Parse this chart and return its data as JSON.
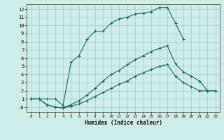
{
  "xlabel": "Humidex (Indice chaleur)",
  "bg_color": "#ceecea",
  "grid_color": "#9ececa",
  "line_color": "#1a6b5c",
  "xticks": [
    0,
    1,
    2,
    3,
    4,
    5,
    6,
    7,
    8,
    9,
    10,
    11,
    12,
    13,
    14,
    15,
    16,
    17,
    18,
    19,
    20,
    21,
    22,
    23
  ],
  "yticks": [
    0,
    1,
    2,
    3,
    4,
    5,
    6,
    7,
    8,
    9,
    10,
    11,
    12
  ],
  "ytick_labels": [
    "-0",
    "1",
    "2",
    "3",
    "4",
    "5",
    "6",
    "7",
    "8",
    "9",
    "10",
    "11",
    "12"
  ],
  "line1_x": [
    0,
    1,
    2,
    3,
    4,
    5,
    6,
    7,
    8,
    9,
    10,
    11,
    12,
    13,
    14,
    15,
    16,
    17,
    18,
    19
  ],
  "line1_y": [
    1.0,
    1.0,
    1.0,
    1.0,
    0.2,
    5.5,
    6.3,
    8.3,
    9.3,
    9.3,
    10.3,
    10.8,
    11.0,
    11.4,
    11.5,
    11.7,
    12.2,
    12.2,
    10.3,
    8.3
  ],
  "line2_x": [
    0,
    1,
    2,
    3,
    4,
    5,
    6,
    7,
    8,
    9,
    10,
    11,
    12,
    13,
    14,
    15,
    16,
    17,
    18,
    19,
    20,
    21,
    22,
    23
  ],
  "line2_y": [
    1.0,
    1.0,
    0.3,
    0.0,
    -0.1,
    0.3,
    0.8,
    1.5,
    2.3,
    3.2,
    4.0,
    4.5,
    5.2,
    5.8,
    6.3,
    6.8,
    7.2,
    7.5,
    5.3,
    4.3,
    3.8,
    3.2,
    2.0,
    2.0
  ],
  "line3_x": [
    0,
    1,
    2,
    3,
    4,
    5,
    6,
    7,
    8,
    9,
    10,
    11,
    12,
    13,
    14,
    15,
    16,
    17,
    18,
    19,
    20,
    21,
    22,
    23
  ],
  "line3_y": [
    1.0,
    1.0,
    0.3,
    0.0,
    -0.1,
    0.1,
    0.4,
    0.8,
    1.3,
    1.8,
    2.3,
    2.8,
    3.2,
    3.8,
    4.2,
    4.6,
    5.0,
    5.2,
    3.8,
    3.0,
    2.5,
    2.0,
    2.0,
    2.0
  ]
}
